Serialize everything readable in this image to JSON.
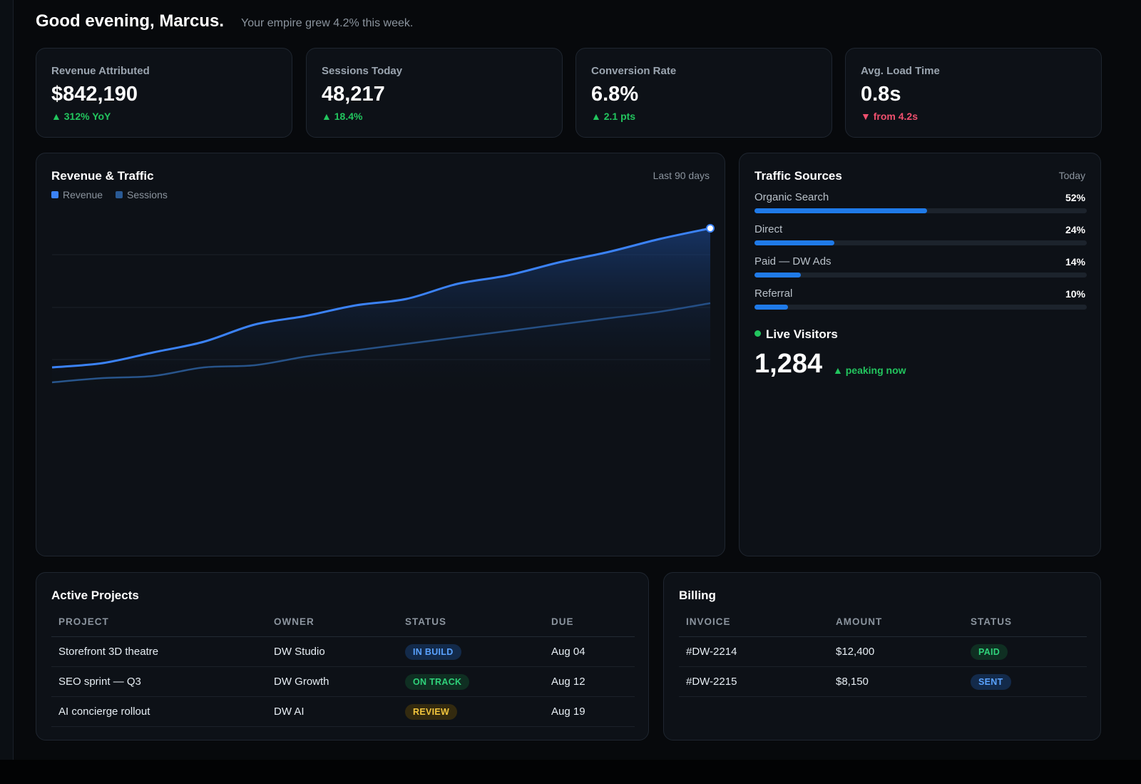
{
  "header": {
    "greeting": "Good evening, Marcus.",
    "subtitle": "Your empire grew 4.2% this week."
  },
  "kpis": [
    {
      "label": "Revenue Attributed",
      "value": "$842,190",
      "delta": "▲ 312% YoY",
      "trend": "up"
    },
    {
      "label": "Sessions Today",
      "value": "48,217",
      "delta": "▲ 18.4%",
      "trend": "up"
    },
    {
      "label": "Conversion Rate",
      "value": "6.8%",
      "delta": "▲ 2.1 pts",
      "trend": "up"
    },
    {
      "label": "Avg. Load Time",
      "value": "0.8s",
      "delta": "▼ from 4.2s",
      "trend": "down"
    }
  ],
  "revenue_chart": {
    "title": "Revenue & Traffic",
    "period": "Last 90 days",
    "series": [
      {
        "name": "Revenue",
        "color": "#3b82f6",
        "values": [
          22,
          24,
          29,
          34,
          42,
          46,
          51,
          54,
          61,
          65,
          71,
          76,
          82,
          87
        ]
      },
      {
        "name": "Sessions",
        "color": "#2a5a94",
        "values": [
          15,
          17,
          18,
          22,
          23,
          27,
          30,
          33,
          36,
          39,
          42,
          45,
          48,
          52
        ]
      }
    ]
  },
  "traffic_sources": {
    "title": "Traffic Sources",
    "period": "Today",
    "sources": [
      {
        "name": "Organic Search",
        "value": 52,
        "label": "52%"
      },
      {
        "name": "Direct",
        "value": 24,
        "label": "24%"
      },
      {
        "name": "Paid — DW Ads",
        "value": 14,
        "label": "14%"
      },
      {
        "name": "Referral",
        "value": 10,
        "label": "10%"
      }
    ]
  },
  "live_visitors": {
    "title": "Live Visitors",
    "count": "1,284",
    "note": "▲ peaking now"
  },
  "projects": {
    "title": "Active Projects",
    "columns": [
      "PROJECT",
      "OWNER",
      "STATUS",
      "DUE"
    ],
    "rows": [
      {
        "cells": [
          "Storefront 3D theatre",
          "DW Studio",
          "IN BUILD",
          "Aug 04"
        ],
        "status_color": "blue"
      },
      {
        "cells": [
          "SEO sprint — Q3",
          "DW Growth",
          "ON TRACK",
          "Aug 12"
        ],
        "status_color": "green"
      },
      {
        "cells": [
          "AI concierge rollout",
          "DW AI",
          "REVIEW",
          "Aug 19"
        ],
        "status_color": "yellow"
      }
    ]
  },
  "billing": {
    "title": "Billing",
    "columns": [
      "INVOICE",
      "AMOUNT",
      "STATUS"
    ],
    "rows": [
      {
        "cells": [
          "#DW-2214",
          "$12,400",
          "PAID"
        ],
        "status_color": "green"
      },
      {
        "cells": [
          "#DW-2215",
          "$8,150",
          "SENT"
        ],
        "status_color": "blue"
      }
    ]
  }
}
